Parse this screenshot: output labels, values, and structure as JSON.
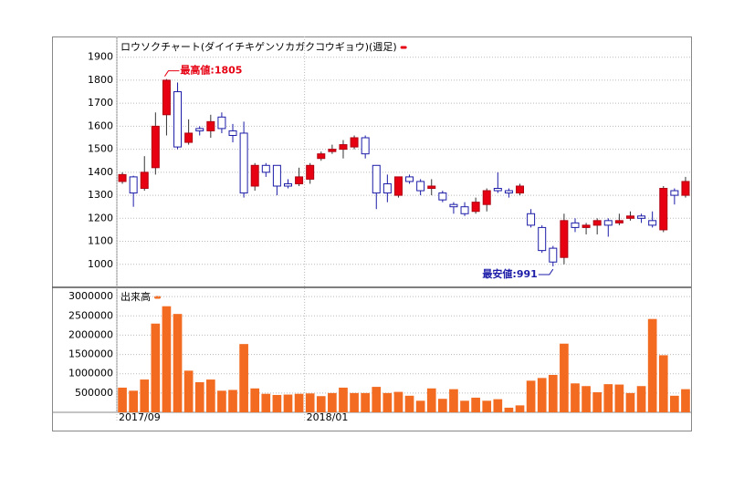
{
  "chart_data": [
    {
      "type": "candlestick",
      "title": "ロウソクチャート(ダイイチキゲンソカガクコウギョウ)(週足)",
      "up_color": "#e60012",
      "down_color": "#1c1ca8",
      "ylim": [
        900,
        1990
      ],
      "yticks": [
        1000,
        1100,
        1200,
        1300,
        1400,
        1500,
        1600,
        1700,
        1800,
        1900
      ],
      "grid": true,
      "annotations": [
        "最高値:1805",
        "最安値:991"
      ],
      "open": [
        1360,
        1380,
        1330,
        1420,
        1650,
        1750,
        1530,
        1590,
        1580,
        1640,
        1580,
        1570,
        1340,
        1430,
        1430,
        1350,
        1350,
        1370,
        1460,
        1490,
        1500,
        1510,
        1550,
        1430,
        1350,
        1300,
        1380,
        1360,
        1330,
        1310,
        1260,
        1250,
        1230,
        1260,
        1330,
        1320,
        1310,
        1220,
        1160,
        1070,
        1030,
        1180,
        1160,
        1170,
        1190,
        1180,
        1200,
        1210,
        1190,
        1150,
        1320,
        1300
      ],
      "high": [
        1400,
        1385,
        1470,
        1660,
        1805,
        1790,
        1630,
        1600,
        1650,
        1660,
        1610,
        1620,
        1440,
        1440,
        1430,
        1370,
        1420,
        1440,
        1490,
        1520,
        1540,
        1560,
        1560,
        1430,
        1390,
        1380,
        1390,
        1370,
        1370,
        1320,
        1270,
        1270,
        1290,
        1330,
        1400,
        1330,
        1350,
        1240,
        1170,
        1080,
        1220,
        1200,
        1180,
        1200,
        1200,
        1220,
        1230,
        1220,
        1230,
        1340,
        1330,
        1380
      ],
      "low": [
        1350,
        1250,
        1320,
        1390,
        1560,
        1500,
        1520,
        1560,
        1550,
        1570,
        1530,
        1290,
        1320,
        1380,
        1300,
        1330,
        1340,
        1350,
        1450,
        1480,
        1460,
        1500,
        1460,
        1240,
        1270,
        1290,
        1350,
        1300,
        1300,
        1270,
        1220,
        1210,
        1220,
        1230,
        1310,
        1290,
        1300,
        1160,
        1050,
        991,
        1000,
        1140,
        1130,
        1130,
        1120,
        1170,
        1190,
        1180,
        1160,
        1140,
        1260,
        1290
      ],
      "close": [
        1390,
        1310,
        1400,
        1600,
        1800,
        1510,
        1570,
        1580,
        1620,
        1590,
        1560,
        1310,
        1430,
        1400,
        1340,
        1340,
        1380,
        1430,
        1480,
        1500,
        1520,
        1550,
        1480,
        1310,
        1310,
        1380,
        1360,
        1320,
        1340,
        1280,
        1250,
        1220,
        1270,
        1320,
        1320,
        1310,
        1340,
        1170,
        1060,
        1010,
        1190,
        1160,
        1170,
        1190,
        1170,
        1190,
        1210,
        1200,
        1170,
        1330,
        1300,
        1360
      ]
    },
    {
      "type": "bar",
      "title": "出来高",
      "color": "#f26b21",
      "categories": [
        "2017/09",
        null,
        null,
        null,
        null,
        null,
        null,
        null,
        null,
        null,
        null,
        null,
        null,
        null,
        null,
        null,
        null,
        "2018/01",
        null,
        null,
        null,
        null,
        null,
        null,
        null,
        null,
        null,
        null,
        null,
        null,
        null,
        null,
        null,
        null,
        null,
        null,
        null,
        null,
        null,
        null,
        null,
        null,
        null,
        null,
        null,
        null,
        null,
        null,
        null,
        null,
        null,
        null
      ],
      "values": [
        640000,
        560000,
        850000,
        2300000,
        2750000,
        2550000,
        1080000,
        780000,
        850000,
        560000,
        580000,
        1770000,
        620000,
        480000,
        450000,
        460000,
        480000,
        490000,
        420000,
        500000,
        640000,
        500000,
        500000,
        660000,
        500000,
        530000,
        430000,
        300000,
        620000,
        350000,
        600000,
        300000,
        380000,
        300000,
        340000,
        120000,
        180000,
        820000,
        890000,
        970000,
        1780000,
        750000,
        680000,
        520000,
        730000,
        720000,
        500000,
        680000,
        2420000,
        1480000,
        430000,
        600000
      ],
      "ylim": [
        0,
        3240000
      ],
      "yticks": [
        500000,
        1000000,
        1500000,
        2000000,
        2500000,
        3000000
      ],
      "grid": true
    }
  ]
}
